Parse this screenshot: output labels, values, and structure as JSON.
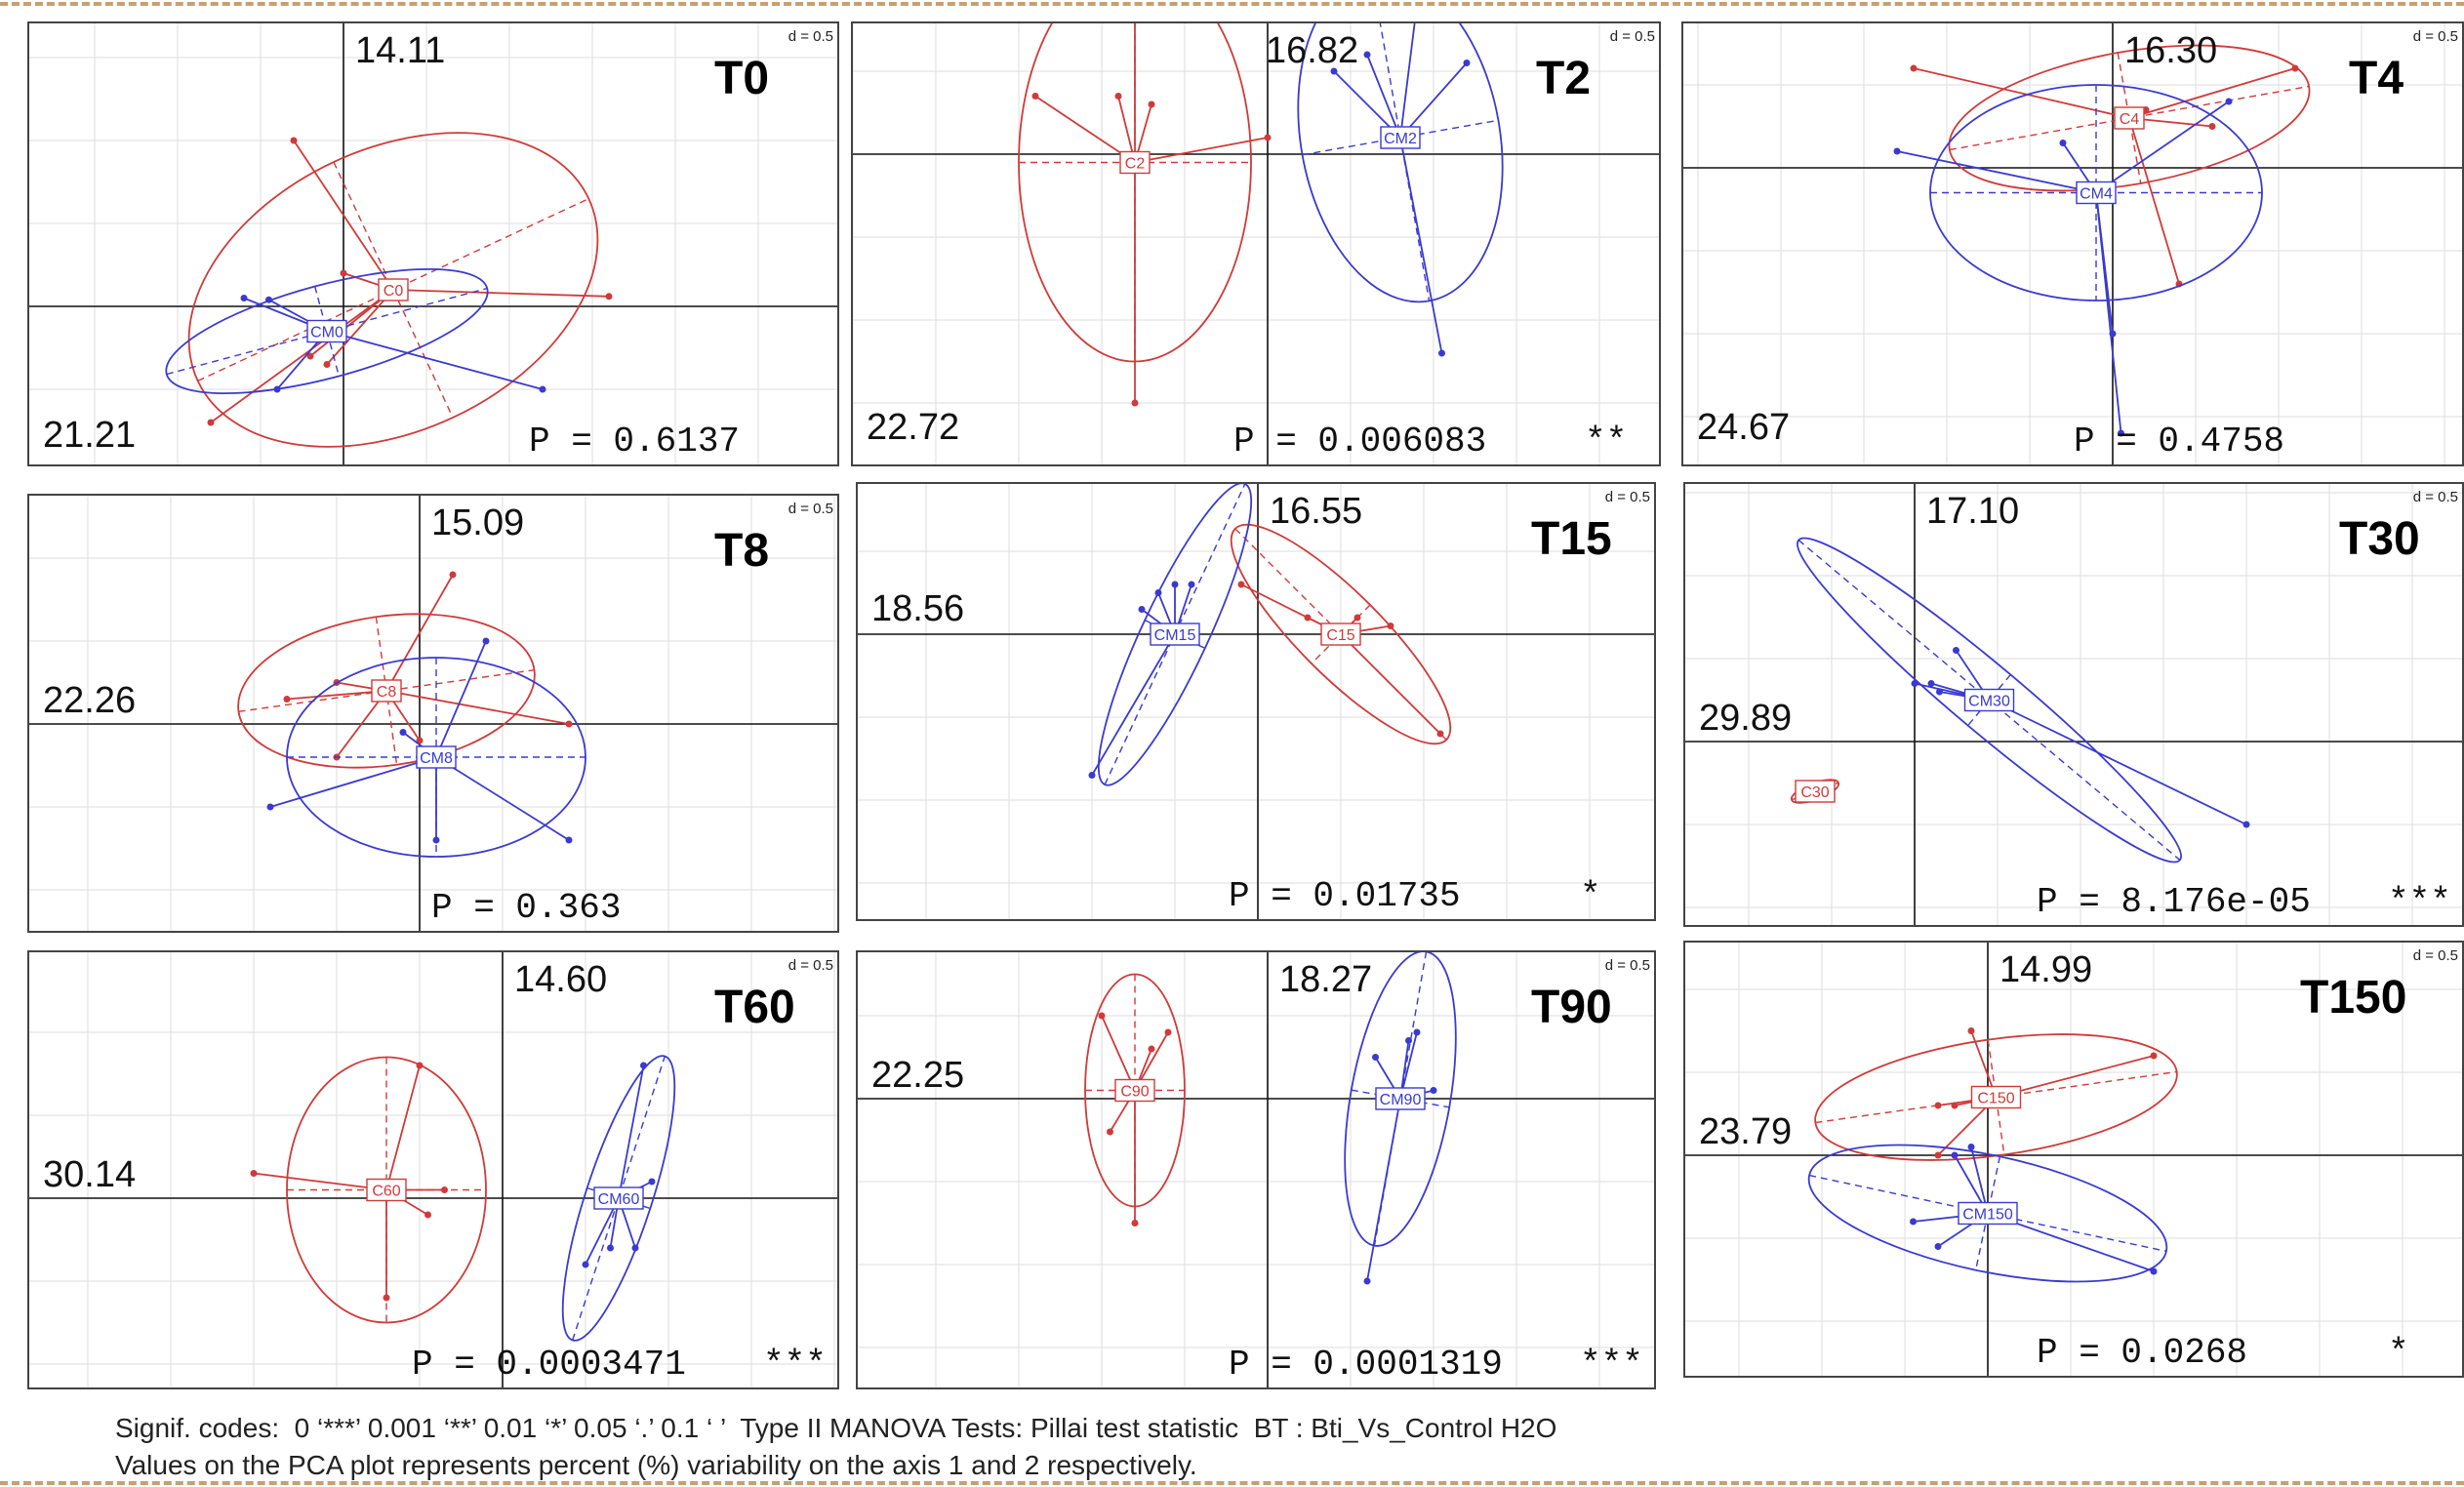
{
  "colors": {
    "control": "#d03a3a",
    "treatment": "#3a3ad0",
    "axis": "#111111",
    "grid": "#dddddd"
  },
  "chart_data": [
    {
      "type": "scatter",
      "panel_label": "T0",
      "d_label": "d = 0.5",
      "axis1_pct": "21.21",
      "axis2_pct": "14.11",
      "p_text": "P = 0.6137",
      "signif": "",
      "groups": [
        {
          "label": "C0",
          "color": "control",
          "center": [
            0.3,
            0.1
          ],
          "points": [
            [
              -0.8,
              -0.7
            ],
            [
              -0.3,
              1.0
            ],
            [
              1.6,
              0.06
            ],
            [
              0.0,
              0.2
            ],
            [
              -0.2,
              -0.3
            ],
            [
              -0.1,
              -0.35
            ]
          ],
          "ellipse": {
            "rx": 1.3,
            "ry": 0.85,
            "angle": -25
          }
        },
        {
          "label": "CM0",
          "color": "treatment",
          "center": [
            -0.1,
            -0.15
          ],
          "points": [
            [
              -0.6,
              0.05
            ],
            [
              -0.45,
              0.04
            ],
            [
              1.2,
              -0.5
            ],
            [
              -0.4,
              -0.5
            ],
            [
              -0.15,
              -0.2
            ]
          ],
          "ellipse": {
            "rx": 1.0,
            "ry": 0.28,
            "angle": -15
          }
        }
      ]
    },
    {
      "type": "scatter",
      "panel_label": "T2",
      "d_label": "d = 0.5",
      "axis1_pct": "22.72",
      "axis2_pct": "16.82",
      "p_text": "P = 0.006083",
      "signif": "**",
      "groups": [
        {
          "label": "C2",
          "color": "control",
          "center": [
            -0.8,
            -0.05
          ],
          "points": [
            [
              -0.9,
              0.35
            ],
            [
              -1.4,
              0.35
            ],
            [
              -0.8,
              1.0
            ],
            [
              -0.8,
              -1.5
            ],
            [
              0.0,
              0.1
            ],
            [
              -0.7,
              0.3
            ]
          ],
          "ellipse": {
            "rx": 0.7,
            "ry": 1.2,
            "angle": 0
          }
        },
        {
          "label": "CM2",
          "color": "treatment",
          "center": [
            0.8,
            0.1
          ],
          "points": [
            [
              0.4,
              0.5
            ],
            [
              0.6,
              0.6
            ],
            [
              1.2,
              0.55
            ],
            [
              0.9,
              0.9
            ],
            [
              1.05,
              -1.2
            ]
          ],
          "ellipse": {
            "rx": 0.6,
            "ry": 1.0,
            "angle": -10
          }
        }
      ]
    },
    {
      "type": "scatter",
      "panel_label": "T4",
      "d_label": "d = 0.5",
      "axis1_pct": "24.67",
      "axis2_pct": "16.30",
      "p_text": "P = 0.4758",
      "signif": "",
      "groups": [
        {
          "label": "C4",
          "color": "control",
          "center": [
            0.1,
            0.3
          ],
          "points": [
            [
              -1.2,
              0.6
            ],
            [
              1.1,
              0.6
            ],
            [
              0.4,
              -0.7
            ],
            [
              0.6,
              0.25
            ],
            [
              0.2,
              0.35
            ]
          ],
          "ellipse": {
            "rx": 1.1,
            "ry": 0.4,
            "angle": -10
          }
        },
        {
          "label": "CM4",
          "color": "treatment",
          "center": [
            -0.1,
            -0.15
          ],
          "points": [
            [
              -1.3,
              0.1
            ],
            [
              -0.3,
              0.15
            ],
            [
              0.05,
              -1.6
            ],
            [
              0.7,
              0.4
            ],
            [
              0.0,
              -1.0
            ]
          ],
          "ellipse": {
            "rx": 1.0,
            "ry": 0.65,
            "angle": 0
          }
        }
      ]
    },
    {
      "type": "scatter",
      "panel_label": "T8",
      "d_label": "d = 0.5",
      "axis1_pct": "22.26",
      "axis2_pct": "15.09",
      "p_text": "P = 0.363",
      "signif": "",
      "groups": [
        {
          "label": "C8",
          "color": "control",
          "center": [
            -0.2,
            0.2
          ],
          "points": [
            [
              -0.8,
              0.15
            ],
            [
              -0.5,
              0.25
            ],
            [
              0.2,
              0.9
            ],
            [
              0.9,
              0.0
            ],
            [
              -0.5,
              -0.2
            ],
            [
              0.0,
              -0.1
            ]
          ],
          "ellipse": {
            "rx": 0.9,
            "ry": 0.45,
            "angle": -8
          }
        },
        {
          "label": "CM8",
          "color": "treatment",
          "center": [
            0.1,
            -0.2
          ],
          "points": [
            [
              -0.9,
              -0.5
            ],
            [
              0.4,
              0.5
            ],
            [
              0.9,
              -0.7
            ],
            [
              0.1,
              -0.7
            ],
            [
              -0.1,
              -0.05
            ]
          ],
          "ellipse": {
            "rx": 0.9,
            "ry": 0.6,
            "angle": 0
          }
        }
      ]
    },
    {
      "type": "scatter",
      "panel_label": "T15",
      "d_label": "d = 0.5",
      "axis1_pct": "18.56",
      "axis2_pct": "16.55",
      "p_text": "P = 0.01735",
      "signif": "*",
      "groups": [
        {
          "label": "C15",
          "color": "control",
          "center": [
            0.5,
            0.0
          ],
          "points": [
            [
              -0.1,
              0.3
            ],
            [
              0.6,
              0.1
            ],
            [
              0.8,
              0.05
            ],
            [
              1.1,
              -0.6
            ],
            [
              0.3,
              0.1
            ]
          ],
          "ellipse": {
            "rx": 0.9,
            "ry": 0.25,
            "angle": 45
          }
        },
        {
          "label": "CM15",
          "color": "treatment",
          "center": [
            -0.5,
            0.0
          ],
          "points": [
            [
              -0.4,
              0.3
            ],
            [
              -0.5,
              0.3
            ],
            [
              -0.6,
              0.25
            ],
            [
              -0.7,
              0.15
            ],
            [
              -1.0,
              -0.85
            ]
          ],
          "ellipse": {
            "rx": 1.0,
            "ry": 0.2,
            "angle": -65
          }
        }
      ]
    },
    {
      "type": "scatter",
      "panel_label": "T30",
      "d_label": "d = 0.5",
      "axis1_pct": "29.89",
      "axis2_pct": "17.10",
      "p_text": "P = 8.176e-05",
      "signif": "***",
      "groups": [
        {
          "label": "C30",
          "color": "control",
          "center": [
            -0.6,
            -0.3
          ],
          "points": [
            [
              -0.5,
              -0.25
            ],
            [
              -0.55,
              -0.3
            ],
            [
              -0.65,
              -0.35
            ],
            [
              -0.7,
              -0.35
            ]
          ],
          "ellipse": {
            "rx": 0.15,
            "ry": 0.05,
            "angle": -20
          }
        },
        {
          "label": "CM30",
          "color": "treatment",
          "center": [
            0.45,
            0.25
          ],
          "points": [
            [
              0.0,
              0.35
            ],
            [
              0.1,
              0.35
            ],
            [
              0.15,
              0.3
            ],
            [
              0.25,
              0.55
            ],
            [
              2.0,
              -0.5
            ]
          ],
          "ellipse": {
            "rx": 1.5,
            "ry": 0.2,
            "angle": 40
          }
        }
      ]
    },
    {
      "type": "scatter",
      "panel_label": "T60",
      "d_label": "d = 0.5",
      "axis1_pct": "30.14",
      "axis2_pct": "14.60",
      "p_text": "P = 0.0003471",
      "signif": "***",
      "groups": [
        {
          "label": "C60",
          "color": "control",
          "center": [
            -0.7,
            0.05
          ],
          "points": [
            [
              -1.5,
              0.15
            ],
            [
              -0.5,
              0.8
            ],
            [
              -0.35,
              0.05
            ],
            [
              -0.45,
              -0.1
            ],
            [
              -0.7,
              -0.6
            ]
          ],
          "ellipse": {
            "rx": 0.6,
            "ry": 0.8,
            "angle": 0
          }
        },
        {
          "label": "CM60",
          "color": "treatment",
          "center": [
            0.7,
            0.0
          ],
          "points": [
            [
              0.85,
              0.8
            ],
            [
              0.9,
              0.1
            ],
            [
              0.5,
              -0.4
            ],
            [
              0.65,
              -0.3
            ],
            [
              0.8,
              -0.3
            ]
          ],
          "ellipse": {
            "rx": 0.9,
            "ry": 0.2,
            "angle": -72
          }
        }
      ]
    },
    {
      "type": "scatter",
      "panel_label": "T90",
      "d_label": "d = 0.5",
      "axis1_pct": "22.25",
      "axis2_pct": "18.27",
      "p_text": "P = 0.0001319",
      "signif": "***",
      "groups": [
        {
          "label": "C90",
          "color": "control",
          "center": [
            -0.8,
            0.05
          ],
          "points": [
            [
              -1.0,
              0.5
            ],
            [
              -0.6,
              0.4
            ],
            [
              -0.7,
              0.3
            ],
            [
              -0.95,
              -0.2
            ],
            [
              -0.8,
              -0.75
            ]
          ],
          "ellipse": {
            "rx": 0.3,
            "ry": 0.7,
            "angle": 0
          }
        },
        {
          "label": "CM90",
          "color": "treatment",
          "center": [
            0.8,
            0.0
          ],
          "points": [
            [
              0.65,
              0.25
            ],
            [
              0.85,
              0.35
            ],
            [
              0.9,
              0.4
            ],
            [
              1.0,
              0.05
            ],
            [
              0.6,
              -1.1
            ]
          ],
          "ellipse": {
            "rx": 0.3,
            "ry": 0.9,
            "angle": 10
          }
        }
      ]
    },
    {
      "type": "scatter",
      "panel_label": "T150",
      "d_label": "d = 0.5",
      "axis1_pct": "23.79",
      "axis2_pct": "14.99",
      "p_text": "P = 0.0268",
      "signif": "*",
      "groups": [
        {
          "label": "C150",
          "color": "control",
          "center": [
            0.05,
            0.35
          ],
          "points": [
            [
              -0.3,
              0.3
            ],
            [
              -0.2,
              0.3
            ],
            [
              -0.1,
              0.75
            ],
            [
              1.0,
              0.6
            ],
            [
              -0.3,
              0.0
            ]
          ],
          "ellipse": {
            "rx": 1.1,
            "ry": 0.35,
            "angle": -8
          }
        },
        {
          "label": "CM150",
          "color": "treatment",
          "center": [
            0.0,
            -0.35
          ],
          "points": [
            [
              -0.45,
              -0.4
            ],
            [
              -0.3,
              -0.55
            ],
            [
              -0.1,
              0.05
            ],
            [
              1.0,
              -0.7
            ],
            [
              -0.2,
              0.0
            ]
          ],
          "ellipse": {
            "rx": 1.1,
            "ry": 0.35,
            "angle": 12
          }
        }
      ]
    }
  ],
  "captions": {
    "line1": "Signif. codes:  0 ‘***’ 0.001 ‘**’ 0.01 ‘*’ 0.05 ‘.’ 0.1 ‘ ’  Type II MANOVA Tests: Pillai test statistic  BT : Bti_Vs_Control H2O",
    "line2": "Values on the PCA plot represents percent (%) variability on the axis 1 and 2 respectively."
  }
}
